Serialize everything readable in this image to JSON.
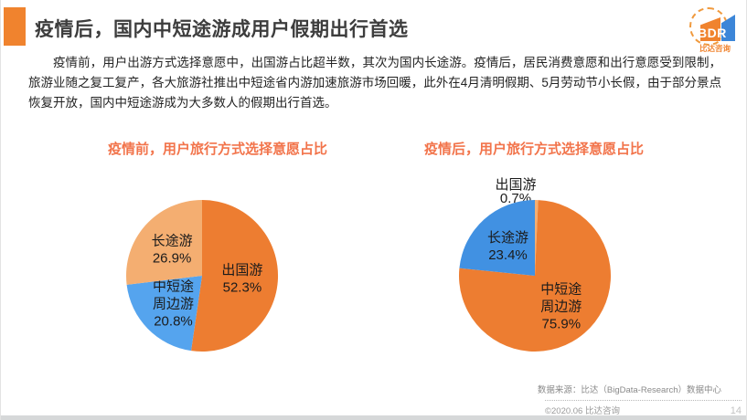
{
  "header": {
    "title": "疫情后，国内中短途游成用户假期出行首选",
    "logo": {
      "text": "BDR",
      "subtext": "比达咨询"
    }
  },
  "intro": {
    "text": "疫情前，用户出游方式选择意愿中，出国游占比超半数，其次为国内长途游。疫情后，居民消费意愿和出行意愿受到限制，旅游业随之复工复产，各大旅游社推出中短途省内游加速旅游市场回暖，此外在4月清明假期、5月劳动节小长假，由于部分景点恢复开放，国内中短途游成为大多数人的假期出行首选。"
  },
  "chart_data": [
    {
      "type": "pie",
      "title": "疫情前，用户旅行方式选择意愿占比",
      "unit": "%",
      "start_angle": "top",
      "direction": "clockwise",
      "legend": "none",
      "slices": [
        {
          "name": "出国游",
          "value": 52.3,
          "color": "#ED7D31",
          "label_lines": [
            "出国游"
          ],
          "label_position": "inside"
        },
        {
          "name": "中短途周边游",
          "value": 20.8,
          "color": "#55A4EE",
          "label_lines": [
            "中短途",
            "周边游"
          ],
          "label_position": "inside"
        },
        {
          "name": "长途游",
          "value": 26.9,
          "color": "#F4AE71",
          "label_lines": [
            "长途游"
          ],
          "label_position": "inside"
        }
      ]
    },
    {
      "type": "pie",
      "title": "疫情后，用户旅行方式选择意愿占比",
      "unit": "%",
      "start_angle": "top",
      "direction": "clockwise",
      "legend": "none",
      "slices": [
        {
          "name": "出国游",
          "value": 0.7,
          "color": "#F4AE71",
          "label_lines": [
            "出国游"
          ],
          "label_position": "outside-top"
        },
        {
          "name": "中短途周边游",
          "value": 75.9,
          "color": "#ED7D31",
          "label_lines": [
            "中短途",
            "周边游"
          ],
          "label_position": "inside"
        },
        {
          "name": "长途游",
          "value": 23.4,
          "color": "#4191E2",
          "label_lines": [
            "长途游"
          ],
          "label_position": "inside"
        }
      ]
    }
  ],
  "footer": {
    "source": "数据来源：比达（BigData-Research）数据中心",
    "copyright": "©2020.06 比达咨询",
    "page_number": "14"
  },
  "palette": {
    "accent_orange": "#F0832E",
    "chart_title_orange": "#F2744B",
    "logo_blue": "#3C86D8"
  }
}
